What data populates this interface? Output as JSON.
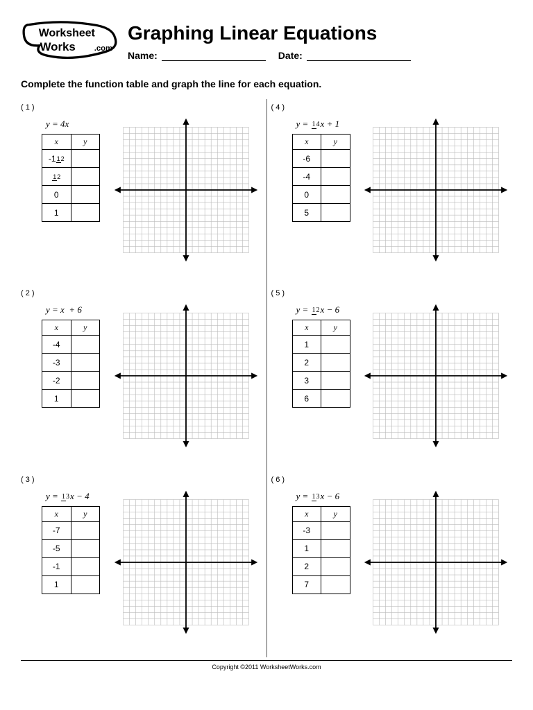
{
  "brand": {
    "top": "Worksheet",
    "bottom": "Works",
    "tld": ".com"
  },
  "title": "Graphing Linear Equations",
  "meta": {
    "name_label": "Name:",
    "date_label": "Date:"
  },
  "instruction": "Complete the function table and graph the line for each equation.",
  "table": {
    "x_header": "x",
    "y_header": "y"
  },
  "graph": {
    "grid_cells": 20,
    "grid_color": "#bcbcbc",
    "axis_color": "#000000",
    "bg_color": "#ffffff"
  },
  "problems": [
    {
      "num": "( 1 )",
      "eq_html": "y = 4<i>x</i>",
      "rows": [
        "-1<span class='tfrac'><span class='n'>1</span><span>2</span></span>",
        "<span class='tfrac'><span class='n'>1</span><span>2</span></span>",
        "0",
        "1"
      ]
    },
    {
      "num": "( 2 )",
      "eq_html": "y = <i>x</i>&nbsp; + 6",
      "rows": [
        "-4",
        "-3",
        "-2",
        "1"
      ]
    },
    {
      "num": "( 3 )",
      "eq_html": "y = <span class='frac'><span class='n'>1</span><span>3</span></span><i>x</i> − 4",
      "rows": [
        "-7",
        "-5",
        "-1",
        "1"
      ]
    },
    {
      "num": "( 4 )",
      "eq_html": "y = <span class='frac'><span class='n'>1</span><span>4</span></span><i>x</i> + 1",
      "rows": [
        "-6",
        "-4",
        "0",
        "5"
      ]
    },
    {
      "num": "( 5 )",
      "eq_html": "y = <span class='frac'><span class='n'>1</span><span>2</span></span><i>x</i> − 6",
      "rows": [
        "1",
        "2",
        "3",
        "6"
      ]
    },
    {
      "num": "( 6 )",
      "eq_html": "y = <span class='frac'><span class='n'>1</span><span>3</span></span><i>x</i> − 6",
      "rows": [
        "-3",
        "1",
        "2",
        "7"
      ]
    }
  ],
  "footer": "Copyright ©2011 WorksheetWorks.com"
}
